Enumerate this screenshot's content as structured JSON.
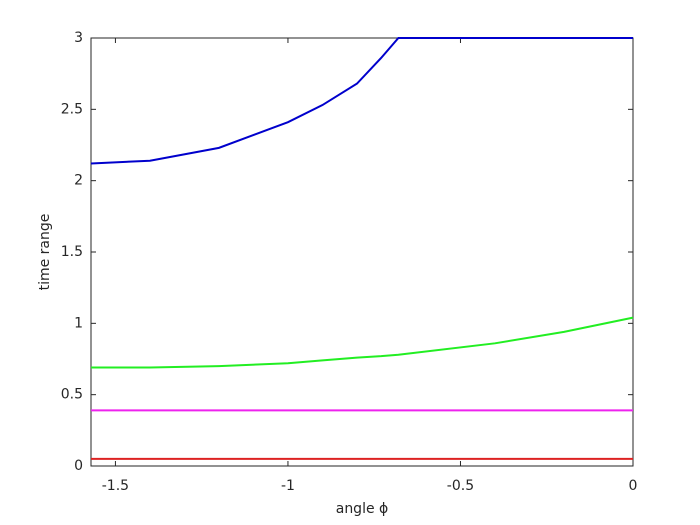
{
  "chart_data": {
    "type": "line",
    "xlabel": "angle ϕ",
    "ylabel": "time range",
    "x": [
      -1.5708,
      -1.4,
      -1.2,
      -1.0,
      -0.9,
      -0.8,
      -0.73,
      -0.68,
      -0.4,
      -0.2,
      0
    ],
    "series": [
      {
        "color": "#0000cc",
        "values": [
          2.12,
          2.14,
          2.23,
          2.41,
          2.53,
          2.68,
          2.86,
          3,
          3,
          3,
          3
        ]
      },
      {
        "color": "#22ee22",
        "values": [
          0.69,
          0.69,
          0.7,
          0.72,
          0.74,
          0.76,
          0.77,
          0.78,
          0.86,
          0.94,
          1.04
        ]
      },
      {
        "color": "#ee22ee",
        "values": [
          0.39,
          0.39,
          0.39,
          0.39,
          0.39,
          0.39,
          0.39,
          0.39,
          0.39,
          0.39,
          0.39
        ]
      },
      {
        "color": "#dd2222",
        "values": [
          0.05,
          0.05,
          0.05,
          0.05,
          0.05,
          0.05,
          0.05,
          0.05,
          0.05,
          0.05,
          0.05
        ]
      }
    ],
    "xlim": [
      -1.5708,
      0
    ],
    "xticks": [
      -1.5,
      -1,
      -0.5,
      0
    ],
    "ylim": [
      0,
      3
    ],
    "yticks": [
      0,
      0.5,
      1,
      1.5,
      2,
      2.5,
      3
    ]
  }
}
